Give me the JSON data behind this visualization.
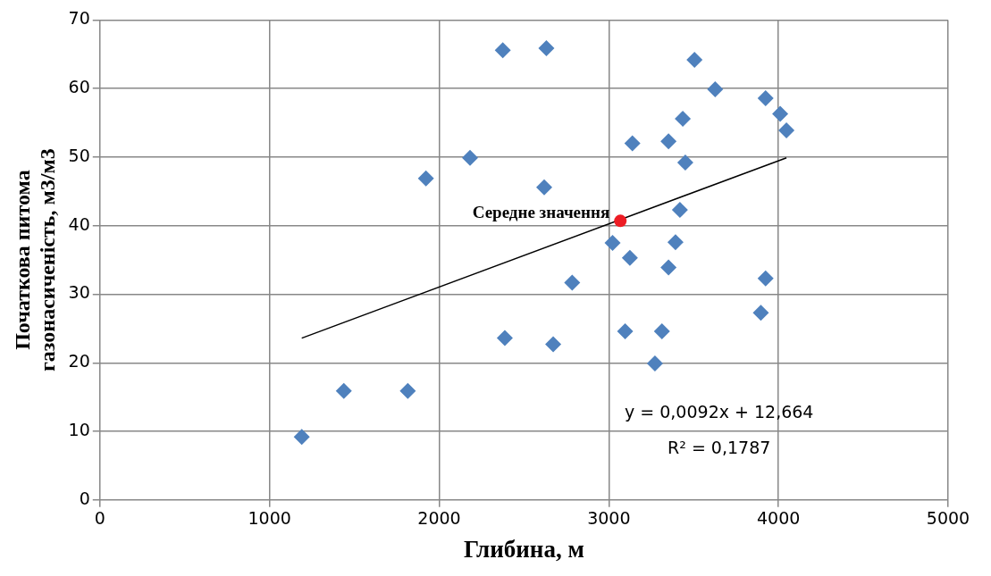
{
  "chart_data": {
    "type": "scatter",
    "xlabel": "Глибина, м",
    "ylabel": "Початкова питома газонасиченість,  м3/м3",
    "xlim": [
      0,
      5000
    ],
    "xticks": [
      0,
      1000,
      2000,
      3000,
      4000,
      5000
    ],
    "ylim": [
      0,
      70
    ],
    "yticks": [
      0,
      10,
      20,
      30,
      40,
      50,
      60,
      70
    ],
    "grid": true,
    "legend": false,
    "marker": "diamond",
    "series": [
      {
        "color": "#4f81bd",
        "x": [
          2375,
          2632,
          2182,
          1922,
          2619,
          2784,
          2387,
          2672,
          1438,
          1815,
          1190,
          3022,
          3505,
          3627,
          3924,
          4010,
          4047,
          3436,
          3139,
          3352,
          3451,
          3419,
          3393,
          3124,
          3352,
          3924,
          3896,
          3096,
          3313,
          3272
        ],
        "values": [
          65.6,
          65.9,
          49.9,
          46.9,
          45.6,
          31.7,
          23.6,
          22.7,
          15.9,
          15.9,
          9.2,
          37.5,
          64.2,
          59.9,
          58.6,
          56.3,
          53.9,
          55.6,
          52.0,
          52.3,
          49.2,
          42.3,
          37.6,
          35.3,
          33.9,
          32.3,
          27.3,
          24.6,
          24.6,
          19.9
        ]
      },
      {
        "type": "line",
        "color": "#000000",
        "marker": "none",
        "x": [
          1190,
          4047
        ],
        "values": [
          23.6,
          49.9
        ]
      },
      {
        "type": "scatter",
        "color": "#ed1c24",
        "marker": "circle",
        "x": [
          3068
        ],
        "values": [
          40.7
        ]
      }
    ],
    "annotations": [
      {
        "text": "Середне значення",
        "x": 3068,
        "y": 40.7
      },
      "y = 0,0092x + 12,664",
      "R² = 0,1787"
    ]
  }
}
